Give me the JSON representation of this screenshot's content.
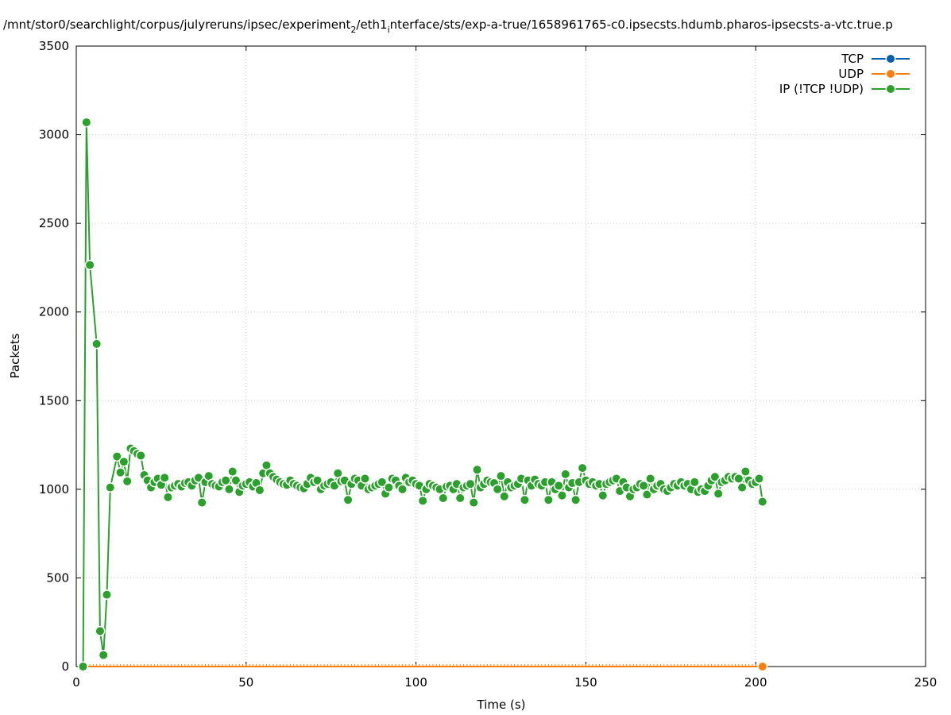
{
  "chart_data": {
    "type": "line",
    "title": {
      "main": "/mnt/stor0/searchlight/corpus/julyreruns/ipsec/experiment",
      "sub1": "2",
      "mid": "/eth1",
      "sub2": "i",
      "rest": "nterface/sts/exp-a-true/1658961765-c0.ipsecsts.hdumb.pharos-ipsecsts-a-vtc.true.p"
    },
    "xlabel": "Time (s)",
    "ylabel": "Packets",
    "xlim": [
      0,
      250
    ],
    "ylim": [
      0,
      3500
    ],
    "x_ticks": [
      0,
      50,
      100,
      150,
      200,
      250
    ],
    "y_ticks": [
      0,
      500,
      1000,
      1500,
      2000,
      2500,
      3000,
      3500
    ],
    "grid": true,
    "legend_position": "top-right",
    "series": [
      {
        "name": "TCP",
        "color": "#0060ad",
        "x": [],
        "y": []
      },
      {
        "name": "UDP",
        "color": "#ff7f0e",
        "x": [
          2,
          3,
          4,
          5,
          6,
          7,
          8,
          9,
          10,
          11,
          12,
          13,
          14,
          15,
          16,
          17,
          18,
          19,
          20,
          21,
          22,
          23,
          24,
          25,
          26,
          27,
          28,
          29,
          30,
          31,
          32,
          33,
          34,
          35,
          36,
          37,
          38,
          39,
          40,
          41,
          42,
          43,
          44,
          45,
          46,
          47,
          48,
          49,
          50,
          51,
          52,
          53,
          54,
          55,
          56,
          57,
          58,
          59,
          60,
          61,
          62,
          63,
          64,
          65,
          66,
          67,
          68,
          69,
          70,
          71,
          72,
          73,
          74,
          75,
          76,
          77,
          78,
          79,
          80,
          81,
          82,
          83,
          84,
          85,
          86,
          87,
          88,
          89,
          90,
          91,
          92,
          93,
          94,
          95,
          96,
          97,
          98,
          99,
          100,
          101,
          102,
          103,
          104,
          105,
          106,
          107,
          108,
          109,
          110,
          111,
          112,
          113,
          114,
          115,
          116,
          117,
          118,
          119,
          120,
          121,
          122,
          123,
          124,
          125,
          126,
          127,
          128,
          129,
          130,
          131,
          132,
          133,
          134,
          135,
          136,
          137,
          138,
          139,
          140,
          141,
          142,
          143,
          144,
          145,
          146,
          147,
          148,
          149,
          150,
          151,
          152,
          153,
          154,
          155,
          156,
          157,
          158,
          159,
          160,
          161,
          162,
          163,
          164,
          165,
          166,
          167,
          168,
          169,
          170,
          171,
          172,
          173,
          174,
          175,
          176,
          177,
          178,
          179,
          180,
          181,
          182,
          183,
          184,
          185,
          186,
          187,
          188,
          189,
          190,
          191,
          192,
          193,
          194,
          195,
          196,
          197,
          198,
          199,
          200,
          201,
          202
        ],
        "y": [
          0,
          0,
          0,
          0,
          0,
          0,
          0,
          0,
          0,
          0,
          0,
          0,
          0,
          0,
          0,
          0,
          0,
          0,
          0,
          0,
          0,
          0,
          0,
          0,
          0,
          0,
          0,
          0,
          0,
          0,
          0,
          0,
          0,
          0,
          0,
          0,
          0,
          0,
          0,
          0,
          0,
          0,
          0,
          0,
          0,
          0,
          0,
          0,
          0,
          0,
          0,
          0,
          0,
          0,
          0,
          0,
          0,
          0,
          0,
          0,
          0,
          0,
          0,
          0,
          0,
          0,
          0,
          0,
          0,
          0,
          0,
          0,
          0,
          0,
          0,
          0,
          0,
          0,
          0,
          0,
          0,
          0,
          0,
          0,
          0,
          0,
          0,
          0,
          0,
          0,
          0,
          0,
          0,
          0,
          0,
          0,
          0,
          0,
          0,
          0,
          0,
          0,
          0,
          0,
          0,
          0,
          0,
          0,
          0,
          0,
          0,
          0,
          0,
          0,
          0,
          0,
          0,
          0,
          0,
          0,
          0,
          0,
          0,
          0,
          0,
          0,
          0,
          0,
          0,
          0,
          0,
          0,
          0,
          0,
          0,
          0,
          0,
          0,
          0,
          0,
          0,
          0,
          0,
          0,
          0,
          0,
          0,
          0,
          0,
          0,
          0,
          0,
          0,
          0,
          0,
          0,
          0,
          0,
          0,
          0,
          0,
          0,
          0,
          0,
          0,
          0,
          0,
          0,
          0,
          0,
          0,
          0,
          0,
          0,
          0,
          0,
          0,
          0,
          0,
          0,
          0,
          0,
          0,
          0,
          0,
          0,
          0,
          0,
          0,
          0,
          0,
          0,
          0,
          0,
          0,
          0,
          0,
          0,
          0,
          0,
          0
        ]
      },
      {
        "name": "IP (!TCP  !UDP)",
        "color": "#2ca02c",
        "x": [
          2,
          3,
          4,
          6,
          7,
          8,
          9,
          10,
          12,
          13,
          14,
          15,
          16,
          17,
          18,
          19,
          20,
          21,
          22,
          23,
          24,
          25,
          26,
          27,
          28,
          29,
          30,
          31,
          32,
          33,
          34,
          35,
          36,
          37,
          38,
          39,
          40,
          41,
          42,
          43,
          44,
          45,
          46,
          47,
          48,
          49,
          50,
          51,
          52,
          53,
          54,
          55,
          56,
          57,
          58,
          59,
          60,
          61,
          62,
          63,
          64,
          65,
          66,
          67,
          68,
          69,
          70,
          71,
          72,
          73,
          74,
          75,
          76,
          77,
          78,
          79,
          80,
          81,
          82,
          83,
          84,
          85,
          86,
          87,
          88,
          89,
          90,
          91,
          92,
          93,
          94,
          95,
          96,
          97,
          98,
          99,
          100,
          101,
          102,
          103,
          104,
          105,
          106,
          107,
          108,
          109,
          110,
          111,
          112,
          113,
          114,
          115,
          116,
          117,
          118,
          119,
          120,
          121,
          122,
          123,
          124,
          125,
          126,
          127,
          128,
          129,
          130,
          131,
          132,
          133,
          134,
          135,
          136,
          137,
          138,
          139,
          140,
          141,
          142,
          143,
          144,
          145,
          146,
          147,
          148,
          149,
          150,
          151,
          152,
          153,
          154,
          155,
          156,
          157,
          158,
          159,
          160,
          161,
          162,
          163,
          164,
          165,
          166,
          167,
          168,
          169,
          170,
          171,
          172,
          173,
          174,
          175,
          176,
          177,
          178,
          179,
          180,
          181,
          182,
          183,
          184,
          185,
          186,
          187,
          188,
          189,
          190,
          191,
          192,
          193,
          194,
          195,
          196,
          197,
          198,
          199,
          200,
          201,
          202
        ],
        "y": [
          0,
          3070,
          2265,
          1820,
          200,
          65,
          405,
          1010,
          1185,
          1095,
          1155,
          1045,
          1230,
          1215,
          1200,
          1190,
          1080,
          1050,
          1010,
          1040,
          1060,
          1025,
          1065,
          955,
          1010,
          1020,
          1030,
          1015,
          1035,
          1040,
          1020,
          1050,
          1065,
          925,
          1040,
          1075,
          1030,
          1020,
          1015,
          1040,
          1050,
          1000,
          1100,
          1050,
          985,
          1020,
          1030,
          1040,
          1015,
          1035,
          995,
          1090,
          1135,
          1090,
          1070,
          1055,
          1040,
          1030,
          1025,
          1050,
          1030,
          1020,
          1010,
          1005,
          1030,
          1065,
          1040,
          1050,
          1000,
          1020,
          1030,
          1040,
          1020,
          1090,
          1045,
          1050,
          940,
          1030,
          1060,
          1050,
          1020,
          1060,
          1000,
          1010,
          1020,
          1030,
          1040,
          975,
          1010,
          1060,
          1050,
          1020,
          1000,
          1065,
          1040,
          1050,
          1030,
          1020,
          935,
          1000,
          1030,
          1020,
          1010,
          1000,
          950,
          1015,
          1020,
          1000,
          1030,
          950,
          1010,
          1020,
          1030,
          925,
          1110,
          1010,
          1030,
          1050,
          1040,
          1035,
          1000,
          1075,
          960,
          1040,
          1010,
          1020,
          1030,
          1060,
          940,
          1050,
          1020,
          1055,
          1030,
          1020,
          1040,
          940,
          1040,
          1000,
          1020,
          965,
          1085,
          1010,
          1035,
          940,
          1040,
          1120,
          1050,
          1030,
          1040,
          1020,
          1030,
          965,
          1030,
          1040,
          1050,
          1060,
          990,
          1040,
          1010,
          960,
          1000,
          1010,
          1030,
          1020,
          970,
          1060,
          1000,
          1020,
          1030,
          1000,
          990,
          1010,
          1030,
          1020,
          1040,
          1020,
          1030,
          1000,
          1040,
          985,
          1000,
          990,
          1020,
          1050,
          1070,
          975,
          1040,
          1050,
          1070,
          1060,
          1070,
          1060,
          1010,
          1100,
          1050,
          1030,
          1040,
          1060,
          930
        ]
      }
    ]
  }
}
